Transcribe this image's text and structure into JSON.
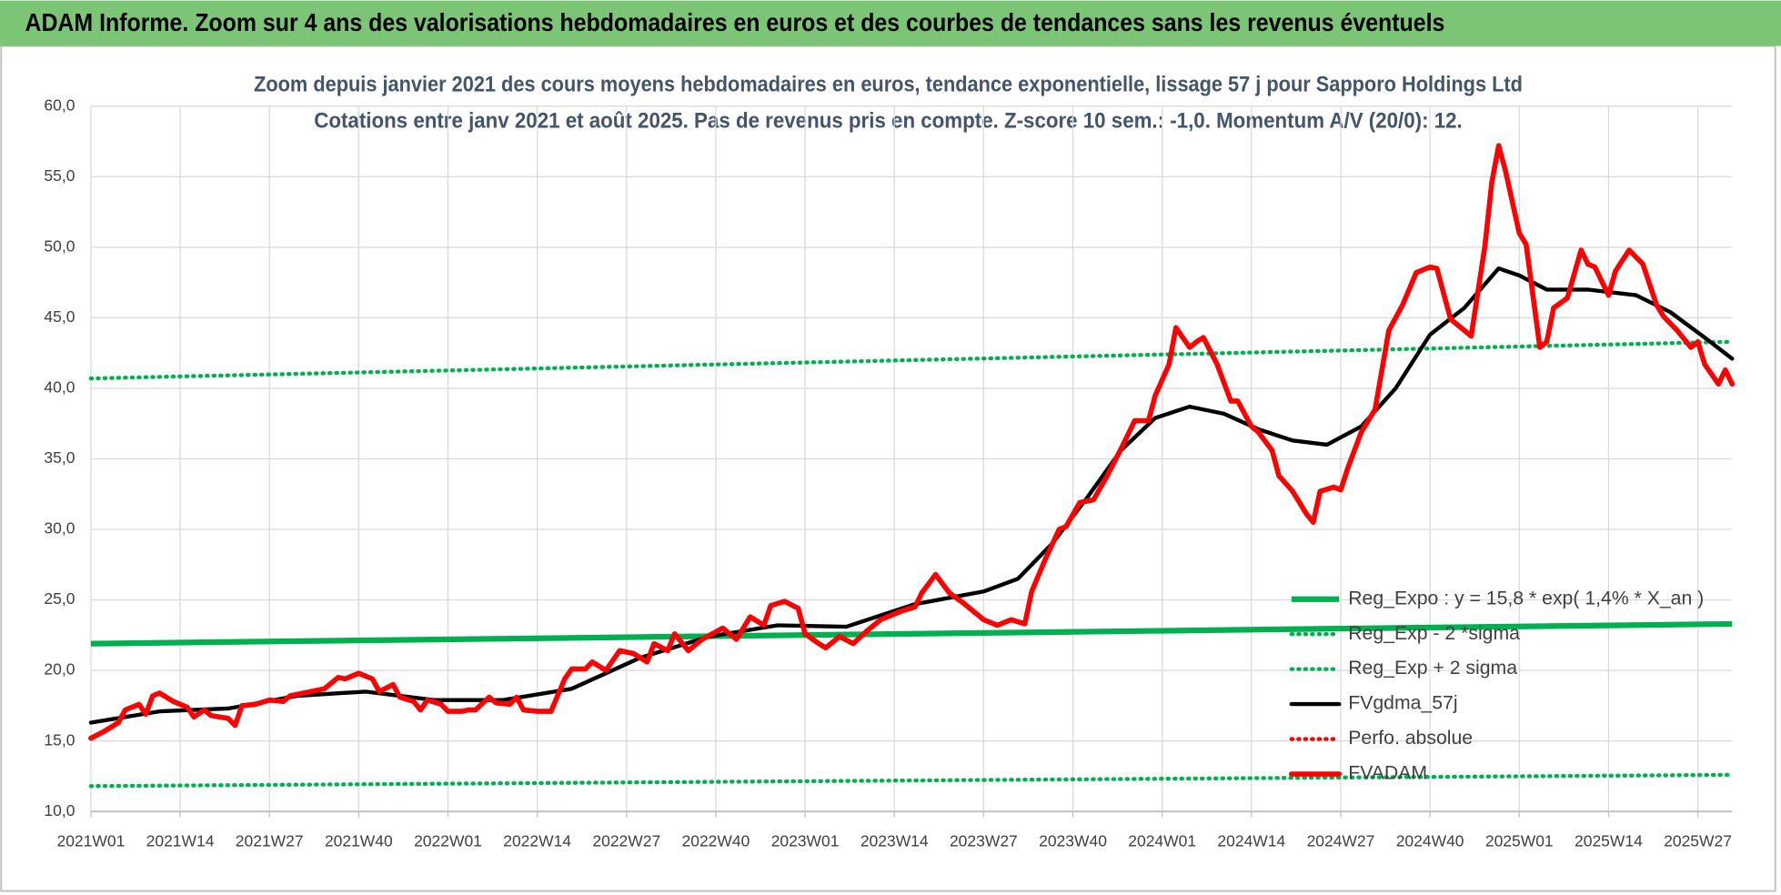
{
  "chart_data": {
    "type": "line",
    "header": "ADAM Informe. Zoom sur 4 ans des valorisations hebdomadaires en euros et des courbes de tendances sans les revenus éventuels",
    "title": "Zoom depuis janvier 2021 des cours moyens hebdomadaires en euros, tendance exponentielle, lissage 57 j pour Sapporo Holdings Ltd",
    "subtitle": "Cotations entre janv 2021 et août 2025.  Pas de revenus pris en compte. Z-score 10 sem.: -1,0. Momentum A/V (20/0): 12.",
    "xlim": [
      0,
      239
    ],
    "xticks": [
      {
        "value": 0,
        "label": "2021W01"
      },
      {
        "value": 13,
        "label": "2021W14"
      },
      {
        "value": 26,
        "label": "2021W27"
      },
      {
        "value": 39,
        "label": "2021W40"
      },
      {
        "value": 52,
        "label": "2022W01"
      },
      {
        "value": 65,
        "label": "2022W14"
      },
      {
        "value": 78,
        "label": "2022W27"
      },
      {
        "value": 91,
        "label": "2022W40"
      },
      {
        "value": 104,
        "label": "2023W01"
      },
      {
        "value": 117,
        "label": "2023W14"
      },
      {
        "value": 130,
        "label": "2023W27"
      },
      {
        "value": 143,
        "label": "2023W40"
      },
      {
        "value": 156,
        "label": "2024W01"
      },
      {
        "value": 169,
        "label": "2024W14"
      },
      {
        "value": 182,
        "label": "2024W27"
      },
      {
        "value": 195,
        "label": "2024W40"
      },
      {
        "value": 208,
        "label": "2025W01"
      },
      {
        "value": 221,
        "label": "2025W14"
      },
      {
        "value": 234,
        "label": "2025W27"
      }
    ],
    "ylim": [
      10,
      60
    ],
    "yticks": [
      {
        "value": 10,
        "label": "10,0"
      },
      {
        "value": 15,
        "label": "15,0"
      },
      {
        "value": 20,
        "label": "20,0"
      },
      {
        "value": 25,
        "label": "25,0"
      },
      {
        "value": 30,
        "label": "30,0"
      },
      {
        "value": 35,
        "label": "35,0"
      },
      {
        "value": 40,
        "label": "40,0"
      },
      {
        "value": 45,
        "label": "45,0"
      },
      {
        "value": 50,
        "label": "50,0"
      },
      {
        "value": 55,
        "label": "55,0"
      },
      {
        "value": 60,
        "label": "60,0"
      }
    ],
    "grid": true,
    "legend": "bottom-right",
    "series": [
      {
        "name": "Reg_Expo : y = 15,8 * exp( 1,4% *  X_an )",
        "color": "#00b050",
        "line_style": "solid",
        "x": [
          0,
          239
        ],
        "values": [
          21.9,
          23.3
        ]
      },
      {
        "name": "Reg_Exp - 2 *sigma",
        "color": "#00b050",
        "line_style": "dotted",
        "x": [
          0,
          239
        ],
        "values": [
          11.8,
          12.6
        ]
      },
      {
        "name": "Reg_Exp + 2 sigma",
        "color": "#00b050",
        "line_style": "dotted",
        "x": [
          0,
          239
        ],
        "values": [
          40.7,
          43.3
        ]
      },
      {
        "name": "FVgdma_57j",
        "color": "#000000",
        "line_style": "solid",
        "x": [
          0,
          10,
          20,
          30,
          40,
          50,
          60,
          70,
          80,
          90,
          100,
          110,
          120,
          130,
          135,
          140,
          145,
          150,
          155,
          160,
          165,
          170,
          175,
          180,
          185,
          190,
          195,
          200,
          205,
          208,
          212,
          218,
          225,
          230,
          235,
          239
        ],
        "values": [
          16.3,
          17.1,
          17.3,
          18.2,
          18.5,
          17.9,
          17.9,
          18.7,
          20.9,
          22.4,
          23.2,
          23.1,
          24.7,
          25.6,
          26.5,
          29.0,
          32.2,
          35.6,
          37.9,
          38.7,
          38.2,
          37.1,
          36.3,
          36.0,
          37.3,
          40.0,
          43.8,
          45.7,
          48.5,
          48.0,
          47.0,
          47.0,
          46.6,
          45.4,
          43.6,
          42.1
        ]
      },
      {
        "name": "Perfo. absolue",
        "color": "#ff0000",
        "line_style": "dotted"
      },
      {
        "name": "FVADAM",
        "color": "#ff0000",
        "line_style": "solid",
        "x": [
          0,
          2,
          4,
          5,
          7,
          8,
          9,
          10,
          12,
          14,
          15,
          16.5,
          17.5,
          20,
          21,
          22,
          24,
          26,
          28,
          29,
          32,
          34,
          36,
          37,
          39,
          41,
          42,
          44,
          45,
          47,
          48,
          49,
          51,
          52,
          54,
          55,
          56,
          58,
          59,
          61,
          62,
          63,
          65,
          67,
          69,
          70,
          72,
          73,
          75,
          77,
          79,
          81,
          82,
          84,
          85,
          87,
          89,
          92,
          94,
          96,
          98,
          99,
          101,
          103,
          104,
          106,
          107,
          109,
          111,
          113,
          115,
          118,
          120,
          121,
          123,
          125,
          127,
          130,
          132,
          134,
          136,
          137,
          139,
          141,
          142,
          144,
          146,
          148,
          150,
          152,
          154,
          155,
          157,
          158,
          160,
          161,
          162,
          164,
          166,
          167,
          169,
          170,
          172,
          173,
          175,
          177,
          178,
          179,
          181,
          182,
          183,
          185,
          187,
          189,
          191,
          193,
          195,
          196,
          198,
          200,
          201,
          203,
          204,
          205,
          206,
          208,
          209,
          211,
          212,
          213,
          215,
          217,
          218,
          219,
          221,
          222,
          224,
          226,
          228,
          229,
          231,
          233,
          234,
          235,
          237,
          238,
          239
        ],
        "values": [
          15.2,
          15.7,
          16.3,
          17.2,
          17.6,
          16.9,
          18.2,
          18.4,
          17.8,
          17.4,
          16.7,
          17.2,
          16.8,
          16.6,
          16.1,
          17.5,
          17.6,
          17.9,
          17.8,
          18.2,
          18.5,
          18.7,
          19.5,
          19.4,
          19.8,
          19.4,
          18.5,
          19.0,
          18.1,
          17.8,
          17.2,
          17.9,
          17.6,
          17.1,
          17.1,
          17.2,
          17.2,
          18.1,
          17.7,
          17.6,
          18.1,
          17.2,
          17.1,
          17.1,
          19.4,
          20.1,
          20.1,
          20.6,
          20.0,
          21.4,
          21.2,
          20.6,
          21.9,
          21.4,
          22.6,
          21.4,
          22.2,
          23.0,
          22.2,
          23.8,
          23.2,
          24.6,
          24.9,
          24.4,
          22.6,
          21.9,
          21.6,
          22.4,
          21.9,
          22.8,
          23.6,
          24.2,
          24.5,
          25.5,
          26.8,
          25.5,
          24.8,
          23.6,
          23.2,
          23.6,
          23.3,
          25.6,
          27.9,
          30.0,
          30.2,
          31.9,
          32.1,
          33.8,
          35.7,
          37.7,
          37.7,
          39.5,
          41.7,
          44.3,
          42.9,
          43.3,
          43.6,
          41.7,
          39.1,
          39.1,
          37.3,
          36.9,
          35.6,
          33.8,
          32.7,
          31.1,
          30.5,
          32.7,
          33.0,
          32.8,
          34.3,
          36.9,
          38.5,
          44.1,
          45.9,
          48.2,
          48.6,
          48.5,
          44.9,
          44.1,
          43.7,
          50.1,
          54.6,
          57.2,
          55.4,
          51.0,
          50.2,
          42.9,
          43.3,
          45.7,
          46.4,
          49.8,
          48.8,
          48.6,
          46.6,
          48.3,
          49.8,
          48.8,
          45.9,
          45.1,
          44.1,
          42.9,
          43.3,
          41.7,
          40.3,
          41.3,
          40.3
        ]
      }
    ]
  }
}
